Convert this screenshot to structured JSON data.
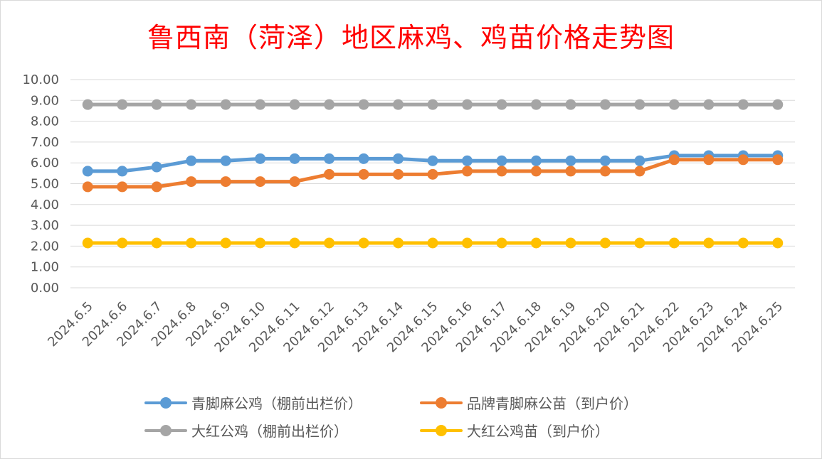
{
  "chart_data": {
    "type": "line",
    "title": "鲁西南（菏泽）地区麻鸡、鸡苗价格走势图",
    "xlabel": "",
    "ylabel": "",
    "ylim": [
      0,
      10
    ],
    "yticks": [
      "0.00",
      "1.00",
      "2.00",
      "3.00",
      "4.00",
      "5.00",
      "6.00",
      "7.00",
      "8.00",
      "9.00",
      "10.00"
    ],
    "grid": true,
    "legend_position": "bottom",
    "categories": [
      "2024.6.5",
      "2024.6.6",
      "2024.6.7",
      "2024.6.8",
      "2024.6.9",
      "2024.6.10",
      "2024.6.11",
      "2024.6.12",
      "2024.6.13",
      "2024.6.14",
      "2024.6.15",
      "2024.6.16",
      "2024.6.17",
      "2024.6.18",
      "2024.6.19",
      "2024.6.20",
      "2024.6.21",
      "2024.6.22",
      "2024.6.23",
      "2024.6.24",
      "2024.6.25"
    ],
    "series": [
      {
        "name": "青脚麻公鸡（棚前出栏价）",
        "color": "#5b9bd5",
        "values": [
          5.6,
          5.6,
          5.8,
          6.1,
          6.1,
          6.2,
          6.2,
          6.2,
          6.2,
          6.2,
          6.1,
          6.1,
          6.1,
          6.1,
          6.1,
          6.1,
          6.1,
          6.35,
          6.35,
          6.35,
          6.35
        ]
      },
      {
        "name": "品牌青脚麻公苗（到户价）",
        "color": "#ed7d31",
        "values": [
          4.85,
          4.85,
          4.85,
          5.1,
          5.1,
          5.1,
          5.1,
          5.45,
          5.45,
          5.45,
          5.45,
          5.6,
          5.6,
          5.6,
          5.6,
          5.6,
          5.6,
          6.15,
          6.15,
          6.15,
          6.15
        ]
      },
      {
        "name": "大红公鸡（棚前出栏价）",
        "color": "#a5a5a5",
        "values": [
          8.8,
          8.8,
          8.8,
          8.8,
          8.8,
          8.8,
          8.8,
          8.8,
          8.8,
          8.8,
          8.8,
          8.8,
          8.8,
          8.8,
          8.8,
          8.8,
          8.8,
          8.8,
          8.8,
          8.8,
          8.8
        ]
      },
      {
        "name": "大红公鸡苗（到户价）",
        "color": "#ffc000",
        "values": [
          2.15,
          2.15,
          2.15,
          2.15,
          2.15,
          2.15,
          2.15,
          2.15,
          2.15,
          2.15,
          2.15,
          2.15,
          2.15,
          2.15,
          2.15,
          2.15,
          2.15,
          2.15,
          2.15,
          2.15,
          2.15
        ]
      }
    ]
  }
}
